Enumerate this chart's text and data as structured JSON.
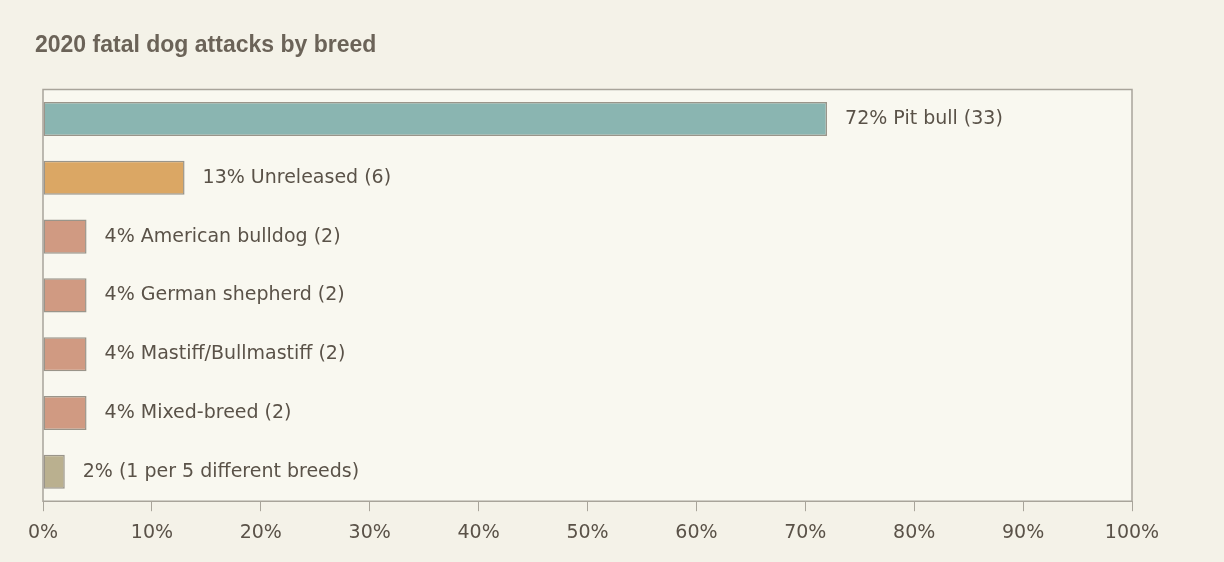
{
  "chart_data": {
    "type": "bar",
    "orientation": "horizontal",
    "title": "2020 fatal dog attacks by breed",
    "categories": [
      null,
      null,
      null,
      null,
      null,
      null,
      null
    ],
    "values": [
      72,
      13,
      4,
      4,
      4,
      4,
      2
    ],
    "colors": [
      "#8ab5b1",
      "#dba764",
      "#d09a82",
      "#d09a82",
      "#d09a82",
      "#d09a82",
      "#bab08f"
    ],
    "value_labels": [
      "72% Pit bull (33)",
      "13% Unreleased (6)",
      "4% American bulldog (2)",
      "4% German shepherd (2)",
      "4% Mastiff/Bullmastiff (2)",
      "4% Mixed-breed (2)",
      "2% (1 per 5 different breeds)"
    ],
    "xlim": [
      0,
      100
    ],
    "xticks": [
      {
        "value": 0,
        "label": "0%"
      },
      {
        "value": 10,
        "label": "10%"
      },
      {
        "value": 20,
        "label": "20%"
      },
      {
        "value": 30,
        "label": "30%"
      },
      {
        "value": 40,
        "label": "40%"
      },
      {
        "value": 50,
        "label": "50%"
      },
      {
        "value": 60,
        "label": "60%"
      },
      {
        "value": 70,
        "label": "70%"
      },
      {
        "value": 80,
        "label": "80%"
      },
      {
        "value": 90,
        "label": "90%"
      },
      {
        "value": 100,
        "label": "100%"
      }
    ],
    "tick_labels": "x",
    "grid": false,
    "legend": false
  }
}
